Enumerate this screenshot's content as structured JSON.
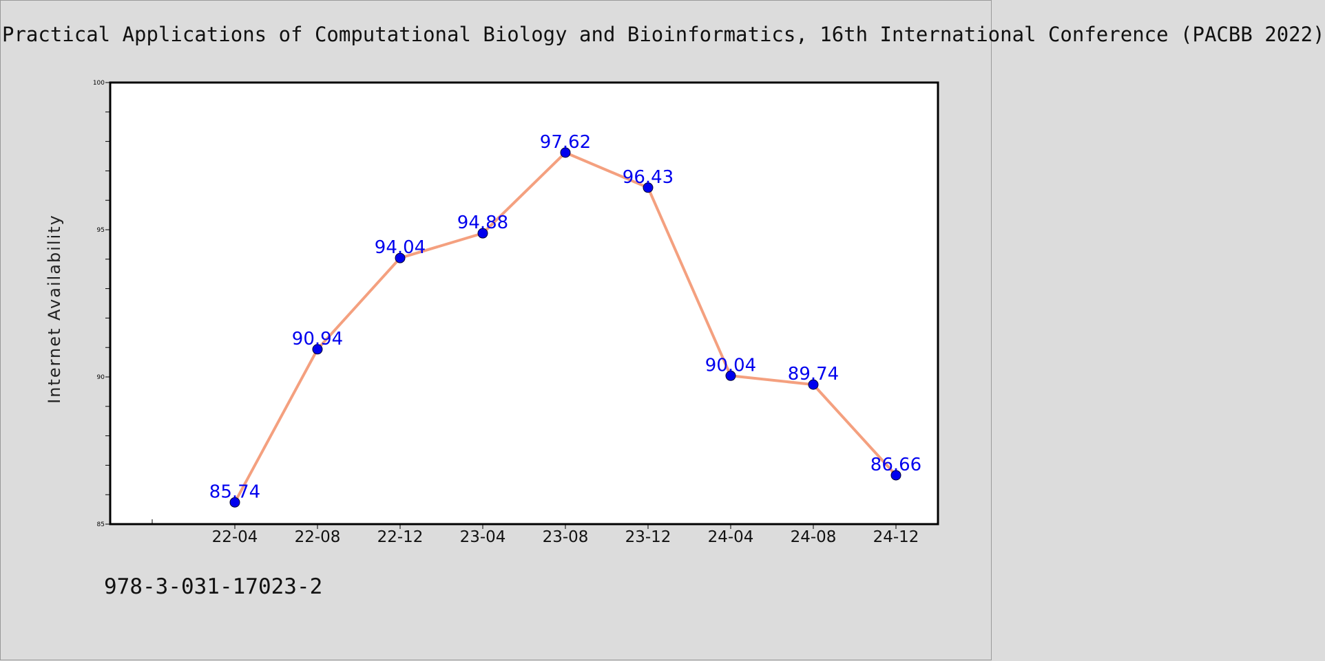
{
  "chart_data": {
    "type": "line",
    "title": "Practical Applications of Computational Biology and Bioinformatics, 16th International Conference (PACBB 2022)",
    "xlabel": "",
    "ylabel": "Internet Availability",
    "categories": [
      "22-04",
      "22-08",
      "22-12",
      "23-04",
      "23-08",
      "23-12",
      "24-04",
      "24-08",
      "24-12"
    ],
    "series": [
      {
        "values": [
          85.74,
          90.94,
          94.04,
          94.88,
          97.62,
          96.43,
          90.04,
          89.74,
          86.66
        ]
      }
    ],
    "data_labels": [
      "85.74",
      "90.94",
      "94.04",
      "94.88",
      "97.62",
      "96.43",
      "90.04",
      "89.74",
      "86.66"
    ],
    "ylim": [
      85,
      100
    ],
    "yticks": [
      85,
      90,
      95,
      100
    ],
    "grid": false,
    "legend": "none",
    "colors": {
      "line": "#f4a07f",
      "marker": "#0000ee",
      "label": "#0000ee",
      "background": "#dcdcdc",
      "plot_background": "#ffffff"
    }
  },
  "footer": {
    "isbn": "978-3-031-17023-2"
  }
}
